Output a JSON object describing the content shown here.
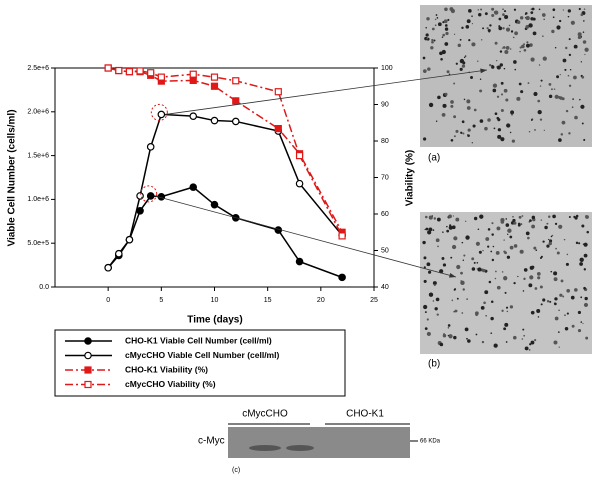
{
  "chart_data": {
    "type": "line",
    "x_label": "Time (days)",
    "y_label": "Viable Cell Number (cells/ml)",
    "y2_label": "Viability (%)",
    "x": [
      0,
      1,
      2,
      3,
      4,
      5,
      8,
      10,
      12,
      16,
      18,
      22
    ],
    "xlim": [
      -5,
      25
    ],
    "xticks": [
      0,
      5,
      10,
      15,
      20,
      25
    ],
    "ylim": [
      0,
      2500000
    ],
    "yticks": [
      {
        "value": 0,
        "label": "0.0"
      },
      {
        "value": 500000,
        "label": "5.0e+5"
      },
      {
        "value": 1000000,
        "label": "1.0e+6"
      },
      {
        "value": 1500000,
        "label": "1.5e+6"
      },
      {
        "value": 2000000,
        "label": "2.0e+6"
      },
      {
        "value": 2500000,
        "label": "2.5e+6"
      }
    ],
    "y2lim": [
      40,
      100
    ],
    "y2ticks": [
      40,
      50,
      60,
      70,
      80,
      90,
      100
    ],
    "series": [
      {
        "name": "CHO-K1 Viable Cell Number (cell/ml)",
        "color": "#000000",
        "line_style": "solid",
        "marker": "circle-filled",
        "values": [
          220000,
          360000,
          540000,
          870000,
          1040000,
          1030000,
          1140000,
          940000,
          790000,
          650000,
          290000,
          110000
        ]
      },
      {
        "name": "cMycCHO Viable Cell Number (cell/ml)",
        "color": "#000000",
        "line_style": "solid",
        "marker": "circle-open",
        "values": [
          220000,
          380000,
          540000,
          1040000,
          1600000,
          1970000,
          1950000,
          1900000,
          1890000,
          1780000,
          1180000,
          590000
        ]
      },
      {
        "name": "CHO-K1 Viability (%)",
        "color": "#e01818",
        "line_style": "dashdot",
        "marker": "square-filled",
        "axis": "y2",
        "values": [
          100,
          99.3,
          99,
          99,
          98,
          96.4,
          96.6,
          95,
          91,
          83.4,
          76.5,
          55
        ]
      },
      {
        "name": "cMycCHO Viability (%)",
        "color": "#e01818",
        "line_style": "dashdot",
        "marker": "square-open",
        "axis": "y2",
        "values": [
          100,
          99.3,
          99,
          99.2,
          98.7,
          97.5,
          98.3,
          97.5,
          96.5,
          93.5,
          76,
          54
        ]
      }
    ]
  },
  "panels": {
    "a": "(a)",
    "b": "(b)",
    "c": "(c)"
  },
  "blot": {
    "groups": [
      "cMycCHO",
      "CHO-K1"
    ],
    "row_label": "c-Myc",
    "marker": "66 KDa"
  }
}
